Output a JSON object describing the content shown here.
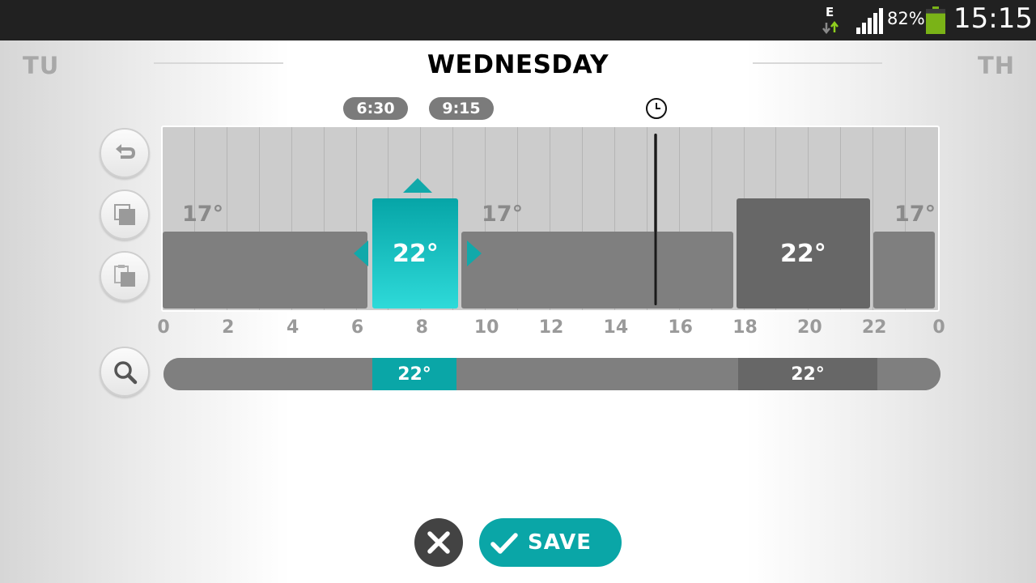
{
  "status_bar": {
    "network_type": "E",
    "battery_percent": "82%",
    "battery_level": 0.82,
    "time": "15:15"
  },
  "header": {
    "prev_day": "TU",
    "title": "WEDNESDAY",
    "next_day": "TH"
  },
  "selection": {
    "start_time": "6:30",
    "end_time": "9:15"
  },
  "now_hour": 15.25,
  "side_tools": [
    {
      "name": "undo",
      "icon": "undo-icon"
    },
    {
      "name": "copy",
      "icon": "copy-icon"
    },
    {
      "name": "paste",
      "icon": "paste-icon"
    }
  ],
  "schedule": {
    "low_labels": [
      "17°",
      "17°",
      "17°"
    ],
    "blocks": [
      {
        "kind": "low",
        "start": 0,
        "end": 6.33,
        "temp": "17°"
      },
      {
        "kind": "sel",
        "start": 6.5,
        "end": 9.15,
        "temp": "22°"
      },
      {
        "kind": "low",
        "start": 9.25,
        "end": 17.65,
        "temp": "17°"
      },
      {
        "kind": "high",
        "start": 17.75,
        "end": 21.9,
        "temp": "22°"
      },
      {
        "kind": "low",
        "start": 22.0,
        "end": 23.9,
        "temp": "17°"
      }
    ]
  },
  "hour_labels": [
    "0",
    "2",
    "4",
    "6",
    "8",
    "10",
    "12",
    "14",
    "16",
    "18",
    "20",
    "22",
    "0"
  ],
  "overview": {
    "segments": [
      {
        "kind": "low",
        "start": 0,
        "end": 6.45,
        "temp": ""
      },
      {
        "kind": "sel",
        "start": 6.45,
        "end": 9.05,
        "temp": "22°"
      },
      {
        "kind": "low",
        "start": 9.05,
        "end": 17.75,
        "temp": ""
      },
      {
        "kind": "high",
        "start": 17.75,
        "end": 22.05,
        "temp": "22°"
      },
      {
        "kind": "low",
        "start": 22.05,
        "end": 24,
        "temp": ""
      }
    ]
  },
  "colors": {
    "accent": "#0aa6a7",
    "low_block": "#7f7f7f",
    "high_block": "#676767"
  },
  "actions": {
    "save_label": "SAVE",
    "cancel_icon": "close-icon"
  }
}
